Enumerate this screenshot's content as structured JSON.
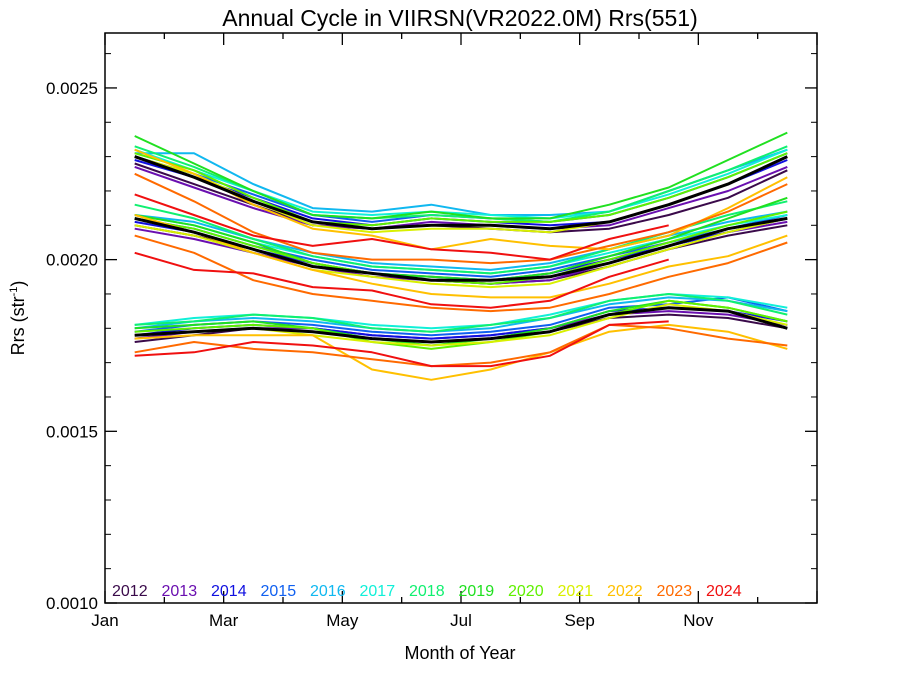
{
  "chart_data": {
    "type": "line",
    "title": "Annual Cycle in VIIRSN(VR2022.0M) Rrs(551)",
    "xlabel": "Month of Year",
    "ylabel_base": "Rrs (str",
    "ylabel_sup": "-1",
    "ylabel_close": ")",
    "xlim": [
      1,
      13
    ],
    "ylim": [
      0.001,
      0.00266
    ],
    "x_ticks": [
      {
        "value": 1,
        "label": "Jan"
      },
      {
        "value": 3,
        "label": "Mar"
      },
      {
        "value": 5,
        "label": "May"
      },
      {
        "value": 7,
        "label": "Jul"
      },
      {
        "value": 9,
        "label": "Sep"
      },
      {
        "value": 11,
        "label": "Nov"
      }
    ],
    "y_ticks": [
      {
        "value": 0.001,
        "label": "0.0010"
      },
      {
        "value": 0.0015,
        "label": "0.0015"
      },
      {
        "value": 0.002,
        "label": "0.0020"
      },
      {
        "value": 0.0025,
        "label": "0.0025"
      }
    ],
    "x": [
      1.5,
      2.5,
      3.5,
      4.5,
      5.5,
      6.5,
      7.5,
      8.5,
      9.5,
      10.5,
      11.5,
      12.5
    ],
    "legend_position": "bottom",
    "colors": {
      "2012": "#3a0a4a",
      "2013": "#6a0fb0",
      "2014": "#1010e0",
      "2015": "#1060f0",
      "2016": "#10b8f0",
      "2017": "#10f0d8",
      "2018": "#10f070",
      "2019": "#20e020",
      "2020": "#60f000",
      "2021": "#d8f000",
      "2022": "#ffc000",
      "2023": "#ff6a00",
      "2024": "#f01010",
      "mean": "#000000"
    },
    "series": [
      {
        "name": "2012",
        "color": "#3a0a4a",
        "groups": [
          [
            0.00228,
            0.00222,
            0.00216,
            0.0021,
            0.00209,
            0.0021,
            0.00209,
            0.00208,
            0.00209,
            0.00213,
            0.00218,
            0.00226
          ],
          [
            0.0021,
            0.00207,
            0.00203,
            0.00198,
            0.00196,
            0.00194,
            0.00193,
            0.00194,
            0.00198,
            0.00203,
            0.00207,
            0.0021
          ],
          [
            0.00176,
            0.00178,
            0.0018,
            0.00179,
            0.00177,
            0.00176,
            0.00177,
            0.00179,
            0.00183,
            0.00184,
            0.00183,
            0.0018
          ]
        ]
      },
      {
        "name": "2013",
        "color": "#6a0fb0",
        "groups": [
          [
            0.00227,
            0.00221,
            0.00215,
            0.0021,
            0.00209,
            0.00211,
            0.0021,
            0.00209,
            0.0021,
            0.00215,
            0.0022,
            0.00227
          ],
          [
            0.00209,
            0.00206,
            0.00202,
            0.00198,
            0.00195,
            0.00194,
            0.00193,
            0.00194,
            0.00199,
            0.00204,
            0.00208,
            0.00211
          ],
          [
            0.00177,
            0.00179,
            0.0018,
            0.0018,
            0.00178,
            0.00177,
            0.00178,
            0.0018,
            0.00184,
            0.00185,
            0.00184,
            0.00181
          ]
        ]
      },
      {
        "name": "2014",
        "color": "#1010e0",
        "groups": [
          [
            0.00229,
            0.00224,
            0.00218,
            0.00212,
            0.0021,
            0.00212,
            0.00211,
            0.0021,
            0.00211,
            0.00216,
            0.00222,
            0.00229
          ],
          [
            0.00211,
            0.00208,
            0.00203,
            0.00199,
            0.00196,
            0.00195,
            0.00194,
            0.00196,
            0.002,
            0.00204,
            0.00208,
            0.00212
          ],
          [
            0.00178,
            0.0018,
            0.00181,
            0.0018,
            0.00178,
            0.00177,
            0.00178,
            0.0018,
            0.00185,
            0.00186,
            0.00185,
            0.00182
          ]
        ]
      },
      {
        "name": "2015",
        "color": "#1060f0",
        "groups": [
          [
            0.0023,
            0.00225,
            0.00219,
            0.00213,
            0.00211,
            0.00213,
            0.00212,
            0.00211,
            0.00213,
            0.00218,
            0.00224,
            0.00231
          ],
          [
            0.00212,
            0.00209,
            0.00204,
            0.002,
            0.00197,
            0.00196,
            0.00195,
            0.00197,
            0.00201,
            0.00205,
            0.00209,
            0.00213
          ],
          [
            0.00179,
            0.00181,
            0.00182,
            0.00181,
            0.00179,
            0.00178,
            0.00179,
            0.00181,
            0.00186,
            0.00187,
            0.00189,
            0.00185
          ]
        ]
      },
      {
        "name": "2016",
        "color": "#10b8f0",
        "groups": [
          [
            0.00231,
            0.00231,
            0.00222,
            0.00215,
            0.00214,
            0.00216,
            0.00213,
            0.00213,
            0.00214,
            0.0022,
            0.00226,
            0.00232
          ],
          [
            0.00213,
            0.00211,
            0.00206,
            0.00202,
            0.00199,
            0.00198,
            0.00197,
            0.00199,
            0.00203,
            0.00207,
            0.00211,
            0.00214
          ],
          [
            0.0018,
            0.00182,
            0.00183,
            0.00182,
            0.0018,
            0.00179,
            0.0018,
            0.00183,
            0.00187,
            0.00189,
            0.00188,
            0.00185
          ]
        ]
      },
      {
        "name": "2017",
        "color": "#10f0d8",
        "groups": [
          [
            0.00232,
            0.00226,
            0.0022,
            0.00214,
            0.00213,
            0.00214,
            0.00213,
            0.00212,
            0.00214,
            0.00219,
            0.00225,
            0.00232
          ],
          [
            0.00213,
            0.0021,
            0.00205,
            0.00201,
            0.00198,
            0.00197,
            0.00196,
            0.00198,
            0.00202,
            0.00206,
            0.0021,
            0.00213
          ],
          [
            0.00181,
            0.00183,
            0.00184,
            0.00183,
            0.00181,
            0.0018,
            0.00181,
            0.00184,
            0.00188,
            0.0019,
            0.00189,
            0.00186
          ]
        ]
      },
      {
        "name": "2018",
        "color": "#10f070",
        "groups": [
          [
            0.00233,
            0.00227,
            0.0022,
            0.00213,
            0.00212,
            0.00213,
            0.00212,
            0.00211,
            0.00214,
            0.0022,
            0.00226,
            0.00233
          ],
          [
            0.00216,
            0.00212,
            0.00206,
            0.00201,
            0.00198,
            0.00197,
            0.00196,
            0.00198,
            0.00203,
            0.00208,
            0.00213,
            0.00217
          ],
          [
            0.00181,
            0.00182,
            0.00184,
            0.00183,
            0.0018,
            0.00179,
            0.00181,
            0.00183,
            0.00188,
            0.0019,
            0.00188,
            0.00184
          ]
        ]
      },
      {
        "name": "2019",
        "color": "#20e020",
        "groups": [
          [
            0.00236,
            0.00228,
            0.0022,
            0.00213,
            0.00212,
            0.00214,
            0.00212,
            0.00212,
            0.00216,
            0.00221,
            0.00229,
            0.00237
          ],
          [
            0.00213,
            0.0021,
            0.00205,
            0.00199,
            0.00196,
            0.00195,
            0.00194,
            0.00196,
            0.00201,
            0.00206,
            0.00212,
            0.00218
          ],
          [
            0.0018,
            0.00181,
            0.00182,
            0.0018,
            0.00177,
            0.00175,
            0.00177,
            0.0018,
            0.00185,
            0.00188,
            0.00186,
            0.00182
          ]
        ]
      },
      {
        "name": "2020",
        "color": "#60f000",
        "groups": [
          [
            0.00231,
            0.00226,
            0.00218,
            0.00211,
            0.0021,
            0.00212,
            0.00211,
            0.00211,
            0.00213,
            0.00218,
            0.00224,
            0.00231
          ],
          [
            0.00212,
            0.00209,
            0.00204,
            0.00199,
            0.00196,
            0.00194,
            0.00193,
            0.00195,
            0.002,
            0.00205,
            0.0021,
            0.00214
          ],
          [
            0.00179,
            0.0018,
            0.00181,
            0.0018,
            0.00176,
            0.00174,
            0.00176,
            0.00179,
            0.00184,
            0.00188,
            0.00186,
            0.00182
          ]
        ]
      },
      {
        "name": "2021",
        "color": "#d8f000",
        "groups": [
          [
            0.0023,
            0.00225,
            0.00217,
            0.0021,
            0.00208,
            0.00209,
            0.00209,
            0.00208,
            0.00211,
            0.00216,
            0.00222,
            0.0023
          ],
          [
            0.0021,
            0.00207,
            0.00202,
            0.00197,
            0.00195,
            0.00193,
            0.00192,
            0.00193,
            0.00198,
            0.00203,
            0.00208,
            0.00212
          ],
          [
            0.00178,
            0.00179,
            0.0018,
            0.00178,
            0.00176,
            0.00175,
            0.00176,
            0.00178,
            0.00183,
            0.00187,
            0.00185,
            0.00181
          ]
        ]
      },
      {
        "name": "2022",
        "color": "#ffc000",
        "groups": [
          [
            0.00232,
            0.00225,
            0.00216,
            0.00209,
            0.00207,
            0.00203,
            0.00206,
            0.00204,
            0.00203,
            0.00207,
            0.00215,
            0.00224
          ],
          [
            0.00213,
            0.00208,
            0.00202,
            0.00197,
            0.00193,
            0.0019,
            0.00189,
            0.00189,
            0.00193,
            0.00198,
            0.00201,
            0.00207
          ],
          [
            0.00177,
            0.00178,
            0.00178,
            0.00178,
            0.00168,
            0.00165,
            0.00168,
            0.00173,
            0.00179,
            0.00181,
            0.00179,
            0.00174
          ]
        ]
      },
      {
        "name": "2023",
        "color": "#ff6a00",
        "groups": [
          [
            0.00225,
            0.00217,
            0.00208,
            0.00202,
            0.002,
            0.002,
            0.00199,
            0.002,
            0.00204,
            0.00208,
            0.00214,
            0.00222
          ],
          [
            0.00207,
            0.00202,
            0.00194,
            0.0019,
            0.00188,
            0.00186,
            0.00185,
            0.00186,
            0.0019,
            0.00195,
            0.00199,
            0.00205
          ],
          [
            0.00173,
            0.00176,
            0.00174,
            0.00173,
            0.00171,
            0.00169,
            0.0017,
            0.00173,
            0.00181,
            0.0018,
            0.00177,
            0.00175
          ]
        ]
      },
      {
        "name": "2024",
        "color": "#f01010",
        "groups": [
          [
            0.00219,
            0.00213,
            0.00207,
            0.00204,
            0.00206,
            0.00203,
            0.00202,
            0.002,
            0.00206,
            0.0021
          ],
          [
            0.00202,
            0.00197,
            0.00196,
            0.00192,
            0.00191,
            0.00187,
            0.00186,
            0.00188,
            0.00195,
            0.002
          ],
          [
            0.00172,
            0.00173,
            0.00176,
            0.00175,
            0.00173,
            0.00169,
            0.00169,
            0.00172,
            0.00181,
            0.00182
          ]
        ]
      },
      {
        "name": "",
        "color": "#000000",
        "groups": [
          [
            0.0023,
            0.00224,
            0.00217,
            0.00211,
            0.00209,
            0.0021,
            0.0021,
            0.00209,
            0.00211,
            0.00216,
            0.00222,
            0.0023
          ],
          [
            0.00212,
            0.00208,
            0.00203,
            0.00198,
            0.00196,
            0.00194,
            0.00194,
            0.00195,
            0.00199,
            0.00204,
            0.00209,
            0.00212
          ],
          [
            0.00178,
            0.00179,
            0.0018,
            0.00179,
            0.00177,
            0.00176,
            0.00177,
            0.00179,
            0.00184,
            0.00186,
            0.00185,
            0.0018
          ]
        ]
      }
    ],
    "legend": [
      "2012",
      "2013",
      "2014",
      "2015",
      "2016",
      "2017",
      "2018",
      "2019",
      "2020",
      "2021",
      "2022",
      "2023",
      "2024"
    ]
  }
}
